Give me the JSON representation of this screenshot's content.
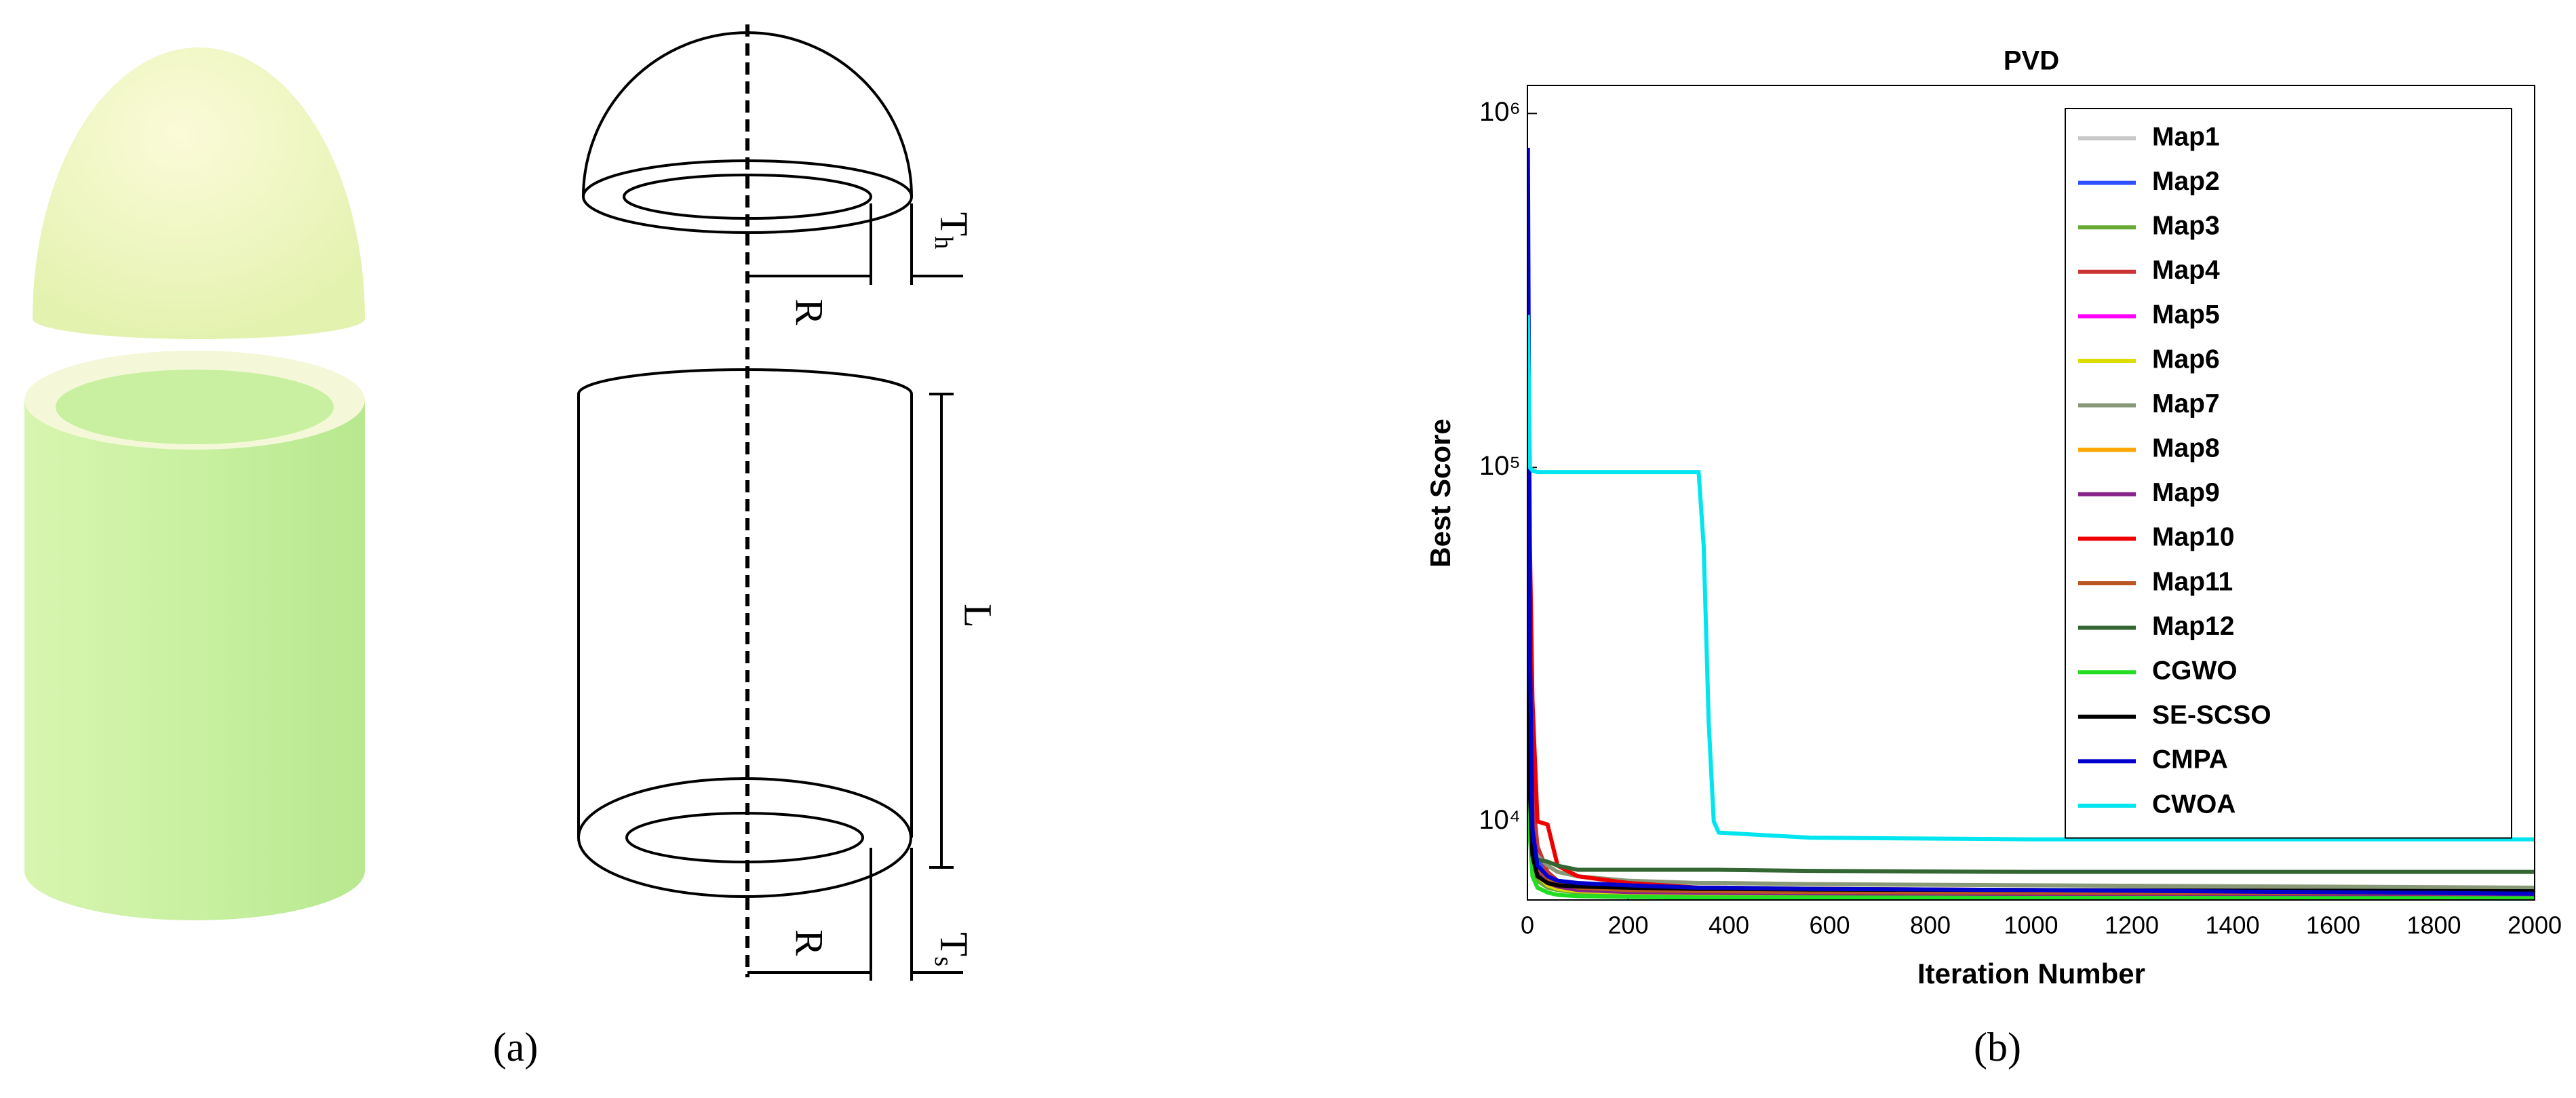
{
  "diagram": {
    "dimension_labels": [
      {
        "main": "T",
        "sub": "h"
      },
      {
        "main": "R"
      },
      {
        "main": "L"
      },
      {
        "main": "R"
      },
      {
        "main": "T",
        "sub": "s"
      }
    ]
  },
  "captions": [
    "(a)",
    "(b)"
  ],
  "chart_data": {
    "type": "line",
    "title": "PVD",
    "xlabel": "Iteration Number",
    "ylabel": "Best Score",
    "yscale": "log",
    "legend": "upper right",
    "x": [
      1,
      5,
      10,
      20,
      40,
      60,
      100,
      200,
      340,
      350,
      360,
      370,
      380,
      560,
      1000,
      2000
    ],
    "xlim": [
      0,
      2000
    ],
    "xticks": [
      0,
      200,
      400,
      600,
      800,
      1000,
      1200,
      1400,
      1600,
      1800,
      2000
    ],
    "ylim": [
      6000,
      1200000
    ],
    "yticks": [
      {
        "value": 10000,
        "label": "10⁴"
      },
      {
        "value": 100000,
        "label": "10⁵"
      },
      {
        "value": 1000000,
        "label": "10⁶"
      }
    ],
    "series": [
      {
        "name": "Map1",
        "color": "#c8c8c8",
        "values": [
          300000,
          20000,
          9000,
          7500,
          7000,
          6800,
          6600,
          6500,
          6400,
          6400,
          6400,
          6400,
          6400,
          6350,
          6300,
          6250
        ]
      },
      {
        "name": "Map2",
        "color": "#3050ff",
        "values": [
          500000,
          30000,
          9500,
          8000,
          7000,
          6700,
          6500,
          6400,
          6350,
          6350,
          6350,
          6350,
          6350,
          6300,
          6250,
          6200
        ]
      },
      {
        "name": "Map3",
        "color": "#66aa33",
        "values": [
          200000,
          15000,
          8000,
          6800,
          6500,
          6400,
          6300,
          6250,
          6200,
          6200,
          6200,
          6200,
          6200,
          6180,
          6160,
          6150
        ]
      },
      {
        "name": "Map4",
        "color": "#cc3333",
        "values": [
          350000,
          40000,
          12000,
          8500,
          7200,
          6800,
          6600,
          6500,
          6400,
          6400,
          6400,
          6400,
          6400,
          6350,
          6320,
          6300
        ]
      },
      {
        "name": "Map5",
        "color": "#ff00ff",
        "values": [
          250000,
          20000,
          9000,
          7000,
          6600,
          6500,
          6400,
          6350,
          6300,
          6300,
          6300,
          6300,
          6300,
          6280,
          6250,
          6230
        ]
      },
      {
        "name": "Map6",
        "color": "#dddd00",
        "values": [
          220000,
          18000,
          8800,
          7000,
          6600,
          6450,
          6350,
          6300,
          6250,
          6250,
          6250,
          6250,
          6250,
          6230,
          6210,
          6200
        ]
      },
      {
        "name": "Map7",
        "color": "#889977",
        "values": [
          150000,
          12000,
          8500,
          8000,
          7500,
          7200,
          7000,
          6800,
          6700,
          6700,
          6700,
          6700,
          6700,
          6650,
          6600,
          6500
        ]
      },
      {
        "name": "Map8",
        "color": "#ffa500",
        "values": [
          280000,
          22000,
          9200,
          7300,
          6800,
          6600,
          6450,
          6350,
          6300,
          6300,
          6300,
          6300,
          6300,
          6280,
          6260,
          6240
        ]
      },
      {
        "name": "Map9",
        "color": "#882288",
        "values": [
          260000,
          21000,
          9100,
          7200,
          6700,
          6550,
          6400,
          6320,
          6280,
          6280,
          6280,
          6280,
          6280,
          6260,
          6240,
          6220
        ]
      },
      {
        "name": "Map10",
        "color": "#ee0000",
        "values": [
          350000,
          60000,
          22000,
          10000,
          9800,
          7500,
          7000,
          6700,
          6500,
          6500,
          6500,
          6500,
          6500,
          6450,
          6400,
          6300
        ]
      },
      {
        "name": "Map11",
        "color": "#bb5522",
        "values": [
          240000,
          19000,
          9000,
          7400,
          6900,
          6700,
          6500,
          6400,
          6350,
          6350,
          6350,
          6350,
          6350,
          6320,
          6290,
          6260
        ]
      },
      {
        "name": "Map12",
        "color": "#336633",
        "values": [
          180000,
          9000,
          8200,
          7800,
          7700,
          7500,
          7300,
          7300,
          7300,
          7300,
          7300,
          7300,
          7300,
          7250,
          7200,
          7200
        ]
      },
      {
        "name": "CGWO",
        "color": "#22dd22",
        "values": [
          160000,
          9000,
          7000,
          6500,
          6300,
          6200,
          6150,
          6120,
          6100,
          6100,
          6100,
          6100,
          6100,
          6100,
          6080,
          6070
        ]
      },
      {
        "name": "SE-SCSO",
        "color": "#000000",
        "values": [
          200000,
          12000,
          8000,
          7000,
          6700,
          6600,
          6550,
          6500,
          6450,
          6450,
          6450,
          6450,
          6450,
          6420,
          6400,
          6350
        ]
      },
      {
        "name": "CMPA",
        "color": "#0000cc",
        "values": [
          800000,
          30000,
          9500,
          7500,
          7000,
          6800,
          6700,
          6600,
          6500,
          6500,
          6500,
          6500,
          6500,
          6450,
          6400,
          6250
        ]
      },
      {
        "name": "CWOA",
        "color": "#00e5ee",
        "values": [
          270000,
          100000,
          98000,
          97000,
          97000,
          97000,
          97000,
          97000,
          97000,
          60000,
          19000,
          10000,
          9300,
          9000,
          8900,
          8900
        ]
      }
    ]
  }
}
